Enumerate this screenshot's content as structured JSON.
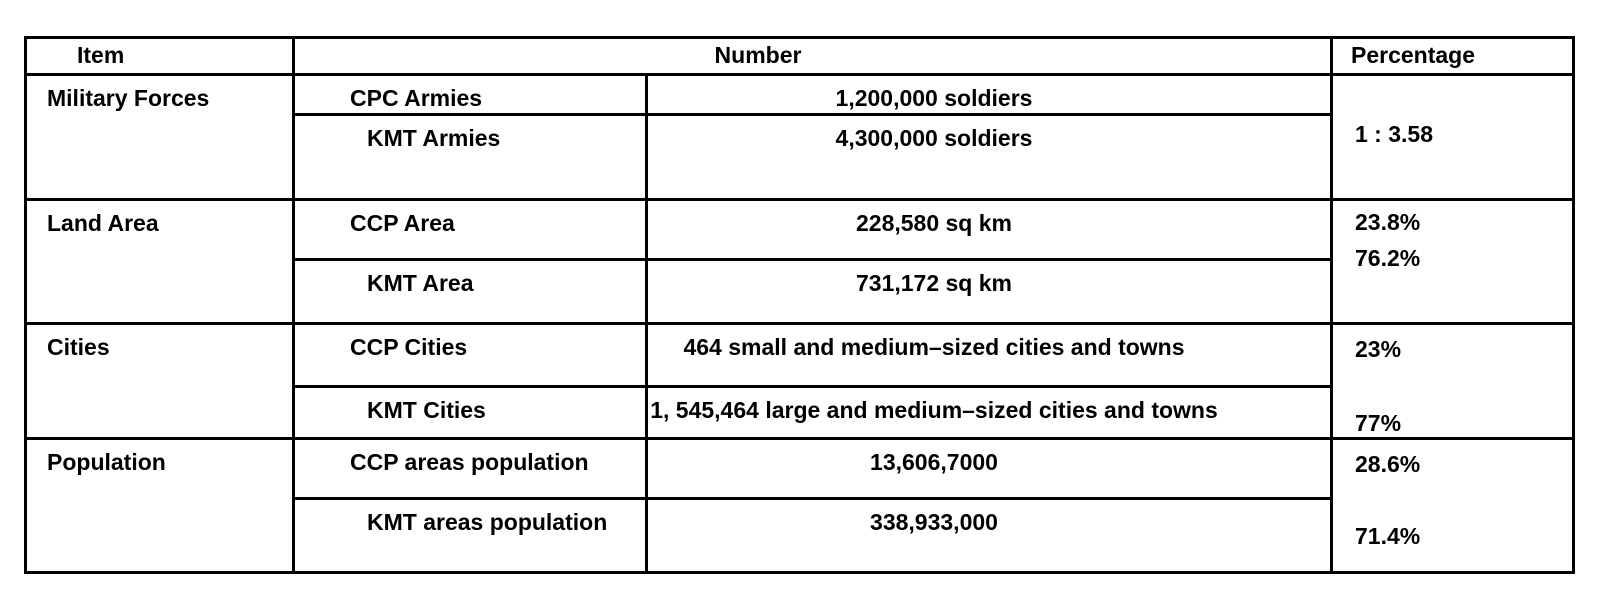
{
  "table": {
    "headers": {
      "item": "Item",
      "number": "Number",
      "percentage": "Percentage"
    },
    "groups": [
      {
        "item": "Military Forces",
        "rows": [
          {
            "label": "CPC Armies",
            "value": "1,200,000 soldiers"
          },
          {
            "label": "KMT Armies",
            "value": "4,300,000 soldiers"
          }
        ],
        "percentage": [
          "1 : 3.58"
        ]
      },
      {
        "item": "Land Area",
        "rows": [
          {
            "label": "CCP Area",
            "value": "228,580 sq km"
          },
          {
            "label": "KMT Area",
            "value": "731,172 sq km"
          }
        ],
        "percentage": [
          "23.8%",
          "76.2%"
        ]
      },
      {
        "item": "Cities",
        "rows": [
          {
            "label": "CCP Cities",
            "value": "464 small and medium–sized cities and towns"
          },
          {
            "label": "KMT Cities",
            "value": "1, 545,464 large and medium–sized cities and towns"
          }
        ],
        "percentage": [
          "23%",
          "77%"
        ]
      },
      {
        "item": "Population",
        "rows": [
          {
            "label": "CCP areas population",
            "value": "13,606,7000"
          },
          {
            "label": "KMT areas population",
            "value": "338,933,000"
          }
        ],
        "percentage": [
          "28.6%",
          "71.4%"
        ]
      }
    ]
  },
  "chart_data": {
    "type": "table",
    "title": "",
    "columns": [
      "Item",
      "Number (category)",
      "Number (value)",
      "Percentage"
    ],
    "rows": [
      [
        "Military Forces",
        "CPC Armies",
        "1,200,000 soldiers",
        "1 : 3.58"
      ],
      [
        "Military Forces",
        "KMT Armies",
        "4,300,000 soldiers",
        "1 : 3.58"
      ],
      [
        "Land Area",
        "CCP Area",
        "228,580 sq km",
        "23.8%"
      ],
      [
        "Land Area",
        "KMT Area",
        "731,172 sq km",
        "76.2%"
      ],
      [
        "Cities",
        "CCP Cities",
        "464 small and medium–sized cities and towns",
        "23%"
      ],
      [
        "Cities",
        "KMT Cities",
        "1, 545,464 large and medium–sized cities and towns",
        "77%"
      ],
      [
        "Population",
        "CCP areas population",
        "13,606,7000",
        "28.6%"
      ],
      [
        "Population",
        "KMT areas population",
        "338,933,000",
        "71.4%"
      ]
    ]
  }
}
